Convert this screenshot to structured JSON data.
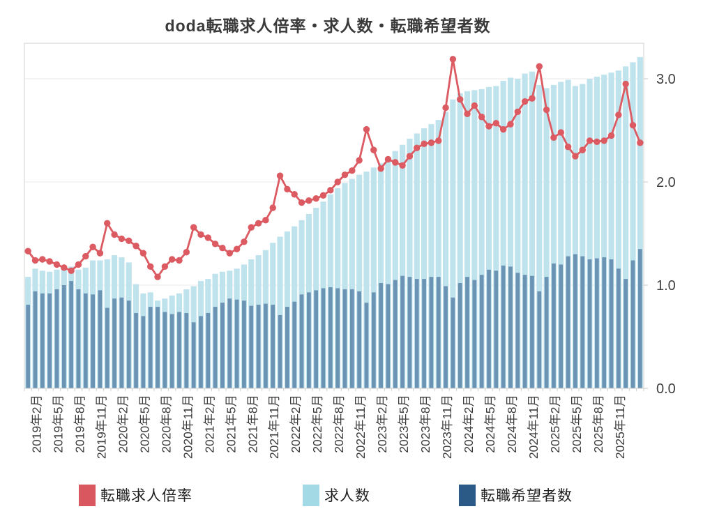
{
  "title": "doda転職求人倍率・求人数・転職希望者数",
  "legend": {
    "items": [
      {
        "label": "転職求人倍率",
        "swatch_color": "#D9575F"
      },
      {
        "label": "求人数",
        "swatch_color": "#A3D9E4"
      },
      {
        "label": "転職希望者数",
        "swatch_color": "#2B5A86"
      }
    ]
  },
  "y_axis": {
    "tick_labels": [
      "0.0",
      "1.0",
      "2.0",
      "3.0"
    ],
    "tick_values": [
      0,
      1,
      2,
      3
    ]
  },
  "chart_data": {
    "type": "combo-bar-line",
    "x_unit": "month",
    "x_start": "2019年1月",
    "x_end": "2026年2月",
    "x_tick_labels": [
      "2019年2月",
      "2019年5月",
      "2019年8月",
      "2019年11月",
      "2020年2月",
      "2020年5月",
      "2020年8月",
      "2020年11月",
      "2021年2月",
      "2021年5月",
      "2021年8月",
      "2021年11月",
      "2022年2月",
      "2022年5月",
      "2022年8月",
      "2022年11月",
      "2023年2月",
      "2023年5月",
      "2023年8月",
      "2023年11月",
      "2024年2月",
      "2024年5月",
      "2024年8月",
      "2024年11月",
      "2025年2月",
      "2025年5月",
      "2025年8月",
      "2025年11月"
    ],
    "ylim": [
      0,
      3.34
    ],
    "grid": "horizontal",
    "legend_position": "bottom",
    "series": [
      {
        "name": "転職求人倍率",
        "type": "line",
        "color": "#DC5A61",
        "values": [
          1.33,
          1.24,
          1.25,
          1.23,
          1.2,
          1.17,
          1.14,
          1.2,
          1.28,
          1.37,
          1.31,
          1.6,
          1.49,
          1.45,
          1.43,
          1.38,
          1.31,
          1.18,
          1.08,
          1.18,
          1.25,
          1.24,
          1.32,
          1.56,
          1.49,
          1.46,
          1.4,
          1.36,
          1.31,
          1.35,
          1.42,
          1.56,
          1.6,
          1.63,
          1.75,
          2.06,
          1.93,
          1.88,
          1.8,
          1.82,
          1.84,
          1.87,
          1.92,
          2.0,
          2.07,
          2.11,
          2.21,
          2.51,
          2.31,
          2.13,
          2.22,
          2.19,
          2.16,
          2.25,
          2.33,
          2.37,
          2.38,
          2.4,
          2.72,
          3.19,
          2.8,
          2.66,
          2.74,
          2.63,
          2.54,
          2.57,
          2.51,
          2.56,
          2.68,
          2.78,
          2.81,
          3.12,
          2.7,
          2.43,
          2.48,
          2.34,
          2.25,
          2.31,
          2.4,
          2.39,
          2.4,
          2.45,
          2.65,
          2.95,
          2.55,
          2.38
        ]
      },
      {
        "name": "求人数",
        "type": "bar",
        "color": "#A3D9E4",
        "bar_fill": "#BEE3ED",
        "values": [
          1.08,
          1.16,
          1.14,
          1.13,
          1.15,
          1.17,
          1.18,
          1.15,
          1.17,
          1.24,
          1.24,
          1.25,
          1.29,
          1.27,
          1.22,
          1.01,
          0.92,
          0.93,
          0.85,
          0.87,
          0.9,
          0.92,
          0.96,
          0.99,
          1.04,
          1.06,
          1.11,
          1.13,
          1.14,
          1.16,
          1.2,
          1.25,
          1.29,
          1.34,
          1.41,
          1.47,
          1.52,
          1.57,
          1.63,
          1.69,
          1.75,
          1.81,
          1.88,
          1.94,
          1.99,
          2.03,
          2.07,
          2.1,
          2.14,
          2.18,
          2.24,
          2.3,
          2.36,
          2.42,
          2.47,
          2.52,
          2.56,
          2.6,
          2.68,
          2.8,
          2.86,
          2.88,
          2.89,
          2.9,
          2.92,
          2.93,
          2.98,
          3.01,
          3.0,
          3.05,
          3.07,
          2.94,
          2.91,
          2.94,
          2.97,
          2.99,
          2.93,
          2.95,
          3.0,
          3.02,
          3.04,
          3.06,
          3.08,
          3.12,
          3.16,
          3.21
        ]
      },
      {
        "name": "転職希望者数",
        "type": "bar",
        "color": "#2B5A86",
        "bar_fill": "#6B93B3",
        "values": [
          0.81,
          0.94,
          0.92,
          0.92,
          0.96,
          1.0,
          1.04,
          0.96,
          0.92,
          0.91,
          0.95,
          0.78,
          0.87,
          0.88,
          0.85,
          0.73,
          0.7,
          0.79,
          0.79,
          0.74,
          0.72,
          0.74,
          0.73,
          0.64,
          0.7,
          0.73,
          0.79,
          0.83,
          0.87,
          0.86,
          0.85,
          0.8,
          0.81,
          0.82,
          0.81,
          0.71,
          0.79,
          0.84,
          0.91,
          0.93,
          0.95,
          0.97,
          0.98,
          0.97,
          0.96,
          0.96,
          0.94,
          0.83,
          0.93,
          1.02,
          1.01,
          1.05,
          1.09,
          1.08,
          1.06,
          1.06,
          1.08,
          1.08,
          0.99,
          0.88,
          1.02,
          1.08,
          1.05,
          1.1,
          1.15,
          1.14,
          1.19,
          1.18,
          1.12,
          1.1,
          1.09,
          0.94,
          1.08,
          1.21,
          1.2,
          1.28,
          1.3,
          1.28,
          1.25,
          1.26,
          1.27,
          1.25,
          1.16,
          1.06,
          1.24,
          1.35
        ]
      }
    ]
  }
}
